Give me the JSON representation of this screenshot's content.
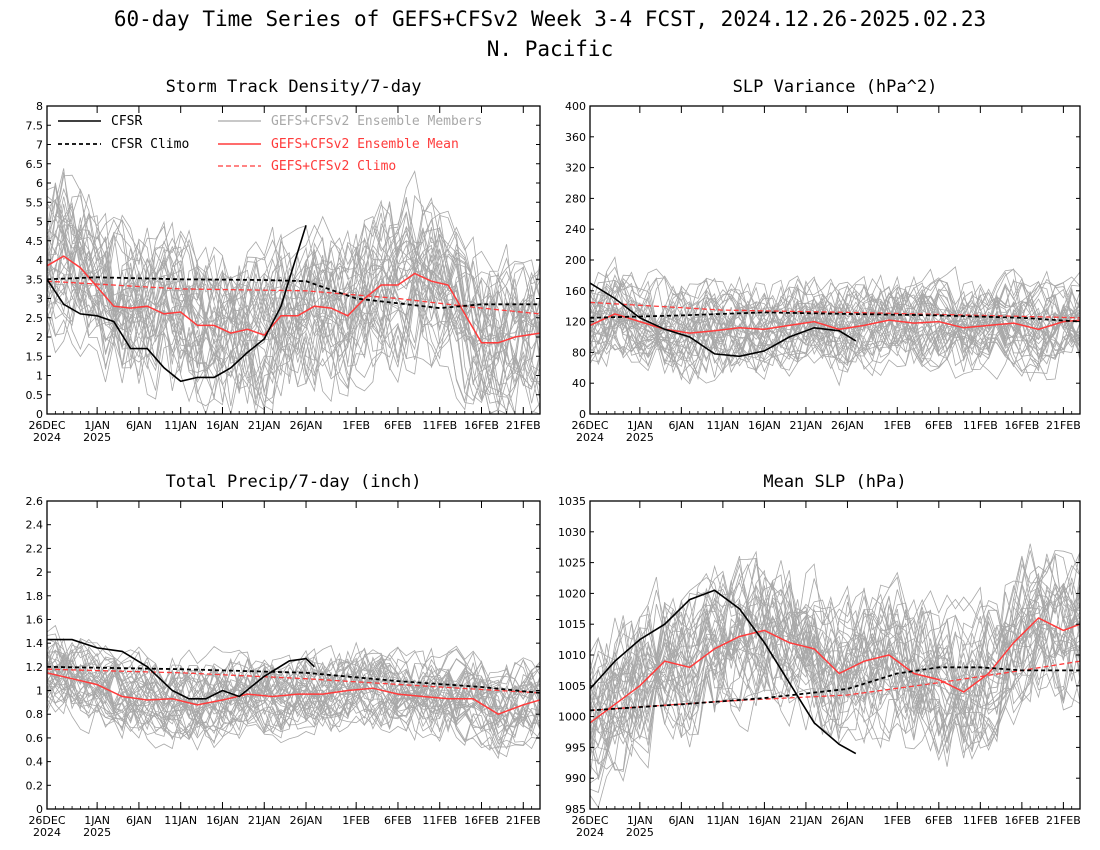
{
  "title_line1": "60-day Time Series of GEFS+CFSv2 Week 3-4 FCST, 2024.12.26-2025.02.23",
  "title_line2": "N. Pacific",
  "colors": {
    "cfsr": "#000000",
    "members": "#a8a8a8",
    "mean": "#ff3b3b",
    "climo_red": "#ff3b3b"
  },
  "legend": {
    "cfsr": "CFSR",
    "cfsr_climo": "CFSR Climo",
    "members": "GEFS+CFSv2 Ensemble Members",
    "mean": "GEFS+CFSv2 Ensemble Mean",
    "gefs_climo": "GEFS+CFSv2 Climo"
  },
  "x_axis": {
    "start": "2024-12-26",
    "end": "2025-02-23",
    "tick_labels": [
      {
        "date": "2024-12-26",
        "line1": "26DEC",
        "line2": "2024"
      },
      {
        "date": "2025-01-01",
        "line1": "1JAN",
        "line2": "2025"
      },
      {
        "date": "2025-01-06",
        "line1": "6JAN",
        "line2": ""
      },
      {
        "date": "2025-01-11",
        "line1": "11JAN",
        "line2": ""
      },
      {
        "date": "2025-01-16",
        "line1": "16JAN",
        "line2": ""
      },
      {
        "date": "2025-01-21",
        "line1": "21JAN",
        "line2": ""
      },
      {
        "date": "2025-01-26",
        "line1": "26JAN",
        "line2": ""
      },
      {
        "date": "2025-02-01",
        "line1": "1FEB",
        "line2": ""
      },
      {
        "date": "2025-02-06",
        "line1": "6FEB",
        "line2": ""
      },
      {
        "date": "2025-02-11",
        "line1": "11FEB",
        "line2": ""
      },
      {
        "date": "2025-02-16",
        "line1": "16FEB",
        "line2": ""
      },
      {
        "date": "2025-02-21",
        "line1": "21FEB",
        "line2": ""
      }
    ]
  },
  "chart_data": [
    {
      "type": "line",
      "title": "Storm Track Density/7-day",
      "ylim": [
        0,
        8
      ],
      "yticks": [
        "0",
        "0.5",
        "1",
        "1.5",
        "2",
        "2.5",
        "3",
        "3.5",
        "4",
        "4.5",
        "5",
        "5.5",
        "6",
        "6.5",
        "7",
        "7.5",
        "8"
      ],
      "show_legend": true,
      "members": {
        "count": 40,
        "spread": 1.3,
        "min": 0,
        "max": 8,
        "seed": 11
      },
      "series": [
        {
          "name": "CFSR",
          "style": "solid-black",
          "x": [
            "2024-12-26",
            "2024-12-28",
            "2024-12-30",
            "2025-01-01",
            "2025-01-03",
            "2025-01-05",
            "2025-01-07",
            "2025-01-09",
            "2025-01-11",
            "2025-01-13",
            "2025-01-15",
            "2025-01-17",
            "2025-01-19",
            "2025-01-21",
            "2025-01-23",
            "2025-01-26"
          ],
          "y": [
            3.5,
            2.85,
            2.6,
            2.55,
            2.4,
            1.7,
            1.7,
            1.2,
            0.85,
            0.95,
            0.95,
            1.2,
            1.6,
            1.95,
            2.8,
            4.9
          ]
        },
        {
          "name": "CFSR Climo",
          "style": "dashed-black",
          "x": [
            "2024-12-26",
            "2025-01-01",
            "2025-01-11",
            "2025-01-21",
            "2025-01-26",
            "2025-02-01",
            "2025-02-11",
            "2025-02-16",
            "2025-02-23"
          ],
          "y": [
            3.5,
            3.55,
            3.5,
            3.48,
            3.45,
            3.0,
            2.75,
            2.85,
            2.85
          ]
        },
        {
          "name": "GEFS+CFSv2 Ensemble Mean",
          "style": "solid-red",
          "x": [
            "2024-12-26",
            "2024-12-28",
            "2024-12-30",
            "2025-01-01",
            "2025-01-03",
            "2025-01-05",
            "2025-01-07",
            "2025-01-09",
            "2025-01-11",
            "2025-01-13",
            "2025-01-15",
            "2025-01-17",
            "2025-01-19",
            "2025-01-21",
            "2025-01-23",
            "2025-01-25",
            "2025-01-27",
            "2025-01-29",
            "2025-01-31",
            "2025-02-02",
            "2025-02-04",
            "2025-02-06",
            "2025-02-08",
            "2025-02-10",
            "2025-02-12",
            "2025-02-14",
            "2025-02-16",
            "2025-02-18",
            "2025-02-20",
            "2025-02-23"
          ],
          "y": [
            3.85,
            4.1,
            3.8,
            3.3,
            2.8,
            2.75,
            2.8,
            2.6,
            2.65,
            2.3,
            2.3,
            2.1,
            2.2,
            2.05,
            2.55,
            2.55,
            2.8,
            2.75,
            2.55,
            3.0,
            3.35,
            3.35,
            3.65,
            3.45,
            3.35,
            2.6,
            1.85,
            1.85,
            2.0,
            2.1
          ]
        },
        {
          "name": "GEFS+CFSv2 Climo",
          "style": "dashed-red",
          "x": [
            "2024-12-26",
            "2025-01-11",
            "2025-01-26",
            "2025-02-06",
            "2025-02-16",
            "2025-02-23"
          ],
          "y": [
            3.45,
            3.25,
            3.2,
            3.0,
            2.75,
            2.6
          ]
        }
      ]
    },
    {
      "type": "line",
      "title": "SLP Variance (hPa^2)",
      "ylim": [
        0,
        400
      ],
      "yticks": [
        "0",
        "40",
        "80",
        "120",
        "160",
        "200",
        "240",
        "280",
        "320",
        "360",
        "400"
      ],
      "show_legend": false,
      "members": {
        "count": 40,
        "spread": 38,
        "min": 20,
        "max": 310,
        "seed": 23
      },
      "series": [
        {
          "name": "CFSR",
          "style": "solid-black",
          "x": [
            "2024-12-26",
            "2024-12-29",
            "2025-01-01",
            "2025-01-04",
            "2025-01-07",
            "2025-01-10",
            "2025-01-13",
            "2025-01-16",
            "2025-01-19",
            "2025-01-22",
            "2025-01-25",
            "2025-01-27"
          ],
          "y": [
            170,
            150,
            125,
            110,
            100,
            78,
            75,
            82,
            100,
            112,
            108,
            95
          ]
        },
        {
          "name": "CFSR Climo",
          "style": "dashed-black",
          "x": [
            "2024-12-26",
            "2025-01-06",
            "2025-01-16",
            "2025-01-26",
            "2025-02-06",
            "2025-02-16",
            "2025-02-23"
          ],
          "y": [
            125,
            128,
            132,
            130,
            128,
            125,
            120
          ]
        },
        {
          "name": "GEFS+CFSv2 Ensemble Mean",
          "style": "solid-red",
          "x": [
            "2024-12-26",
            "2024-12-29",
            "2025-01-01",
            "2025-01-04",
            "2025-01-07",
            "2025-01-10",
            "2025-01-13",
            "2025-01-16",
            "2025-01-19",
            "2025-01-22",
            "2025-01-25",
            "2025-01-28",
            "2025-01-31",
            "2025-02-03",
            "2025-02-06",
            "2025-02-09",
            "2025-02-12",
            "2025-02-15",
            "2025-02-18",
            "2025-02-21",
            "2025-02-23"
          ],
          "y": [
            115,
            130,
            120,
            110,
            105,
            108,
            112,
            110,
            115,
            120,
            110,
            115,
            122,
            118,
            120,
            112,
            115,
            118,
            110,
            120,
            122
          ]
        },
        {
          "name": "GEFS+CFSv2 Climo",
          "style": "dashed-red",
          "x": [
            "2024-12-26",
            "2025-01-11",
            "2025-01-26",
            "2025-02-11",
            "2025-02-23"
          ],
          "y": [
            145,
            135,
            132,
            128,
            125
          ]
        }
      ]
    },
    {
      "type": "line",
      "title": "Total Precip/7-day (inch)",
      "ylim": [
        0,
        2.6
      ],
      "yticks": [
        "0",
        "0.2",
        "0.4",
        "0.6",
        "0.8",
        "1",
        "1.2",
        "1.4",
        "1.6",
        "1.8",
        "2",
        "2.2",
        "2.4",
        "2.6"
      ],
      "show_legend": false,
      "members": {
        "count": 40,
        "spread": 0.22,
        "min": 0.25,
        "max": 1.75,
        "seed": 37
      },
      "series": [
        {
          "name": "CFSR",
          "style": "solid-black",
          "x": [
            "2024-12-26",
            "2024-12-29",
            "2025-01-01",
            "2025-01-04",
            "2025-01-07",
            "2025-01-10",
            "2025-01-12",
            "2025-01-14",
            "2025-01-16",
            "2025-01-18",
            "2025-01-21",
            "2025-01-24",
            "2025-01-26",
            "2025-01-27"
          ],
          "y": [
            1.43,
            1.43,
            1.36,
            1.33,
            1.2,
            1.0,
            0.93,
            0.93,
            1.0,
            0.95,
            1.12,
            1.25,
            1.27,
            1.2
          ]
        },
        {
          "name": "CFSR Climo",
          "style": "dashed-black",
          "x": [
            "2024-12-26",
            "2025-01-11",
            "2025-01-26",
            "2025-02-06",
            "2025-02-16",
            "2025-02-23"
          ],
          "y": [
            1.2,
            1.18,
            1.15,
            1.08,
            1.03,
            0.98
          ]
        },
        {
          "name": "GEFS+CFSv2 Ensemble Mean",
          "style": "solid-red",
          "x": [
            "2024-12-26",
            "2024-12-29",
            "2025-01-01",
            "2025-01-04",
            "2025-01-07",
            "2025-01-10",
            "2025-01-13",
            "2025-01-16",
            "2025-01-19",
            "2025-01-22",
            "2025-01-25",
            "2025-01-28",
            "2025-01-31",
            "2025-02-03",
            "2025-02-06",
            "2025-02-09",
            "2025-02-12",
            "2025-02-15",
            "2025-02-18",
            "2025-02-21",
            "2025-02-23"
          ],
          "y": [
            1.15,
            1.1,
            1.05,
            0.95,
            0.92,
            0.93,
            0.88,
            0.92,
            0.97,
            0.95,
            0.97,
            0.97,
            1.0,
            1.02,
            0.97,
            0.95,
            0.93,
            0.93,
            0.8,
            0.88,
            0.92
          ]
        },
        {
          "name": "GEFS+CFSv2 Climo",
          "style": "dashed-red",
          "x": [
            "2024-12-26",
            "2025-01-11",
            "2025-01-26",
            "2025-02-11",
            "2025-02-23"
          ],
          "y": [
            1.18,
            1.15,
            1.1,
            1.03,
            0.98
          ]
        }
      ]
    },
    {
      "type": "line",
      "title": "Mean SLP (hPa)",
      "ylim": [
        985,
        1035
      ],
      "yticks": [
        "985",
        "990",
        "995",
        "1000",
        "1005",
        "1010",
        "1015",
        "1020",
        "1025",
        "1030",
        "1035"
      ],
      "show_legend": false,
      "members": {
        "count": 40,
        "spread": 7.5,
        "min": 985,
        "max": 1032,
        "seed": 53
      },
      "series": [
        {
          "name": "CFSR",
          "style": "solid-black",
          "x": [
            "2024-12-26",
            "2024-12-29",
            "2025-01-01",
            "2025-01-04",
            "2025-01-07",
            "2025-01-10",
            "2025-01-13",
            "2025-01-16",
            "2025-01-19",
            "2025-01-22",
            "2025-01-25",
            "2025-01-27"
          ],
          "y": [
            1004.5,
            1009,
            1012.5,
            1015,
            1019,
            1020.5,
            1017.5,
            1012,
            1005.5,
            999,
            995.5,
            994
          ]
        },
        {
          "name": "CFSR Climo",
          "style": "dashed-black",
          "x": [
            "2024-12-26",
            "2025-01-06",
            "2025-01-16",
            "2025-01-26",
            "2025-02-01",
            "2025-02-06",
            "2025-02-11",
            "2025-02-16",
            "2025-02-23"
          ],
          "y": [
            1001,
            1002,
            1003,
            1004.5,
            1007,
            1008,
            1008,
            1007.5,
            1007.5
          ]
        },
        {
          "name": "GEFS+CFSv2 Ensemble Mean",
          "style": "solid-red",
          "x": [
            "2024-12-26",
            "2024-12-29",
            "2025-01-01",
            "2025-01-04",
            "2025-01-07",
            "2025-01-10",
            "2025-01-13",
            "2025-01-16",
            "2025-01-19",
            "2025-01-22",
            "2025-01-25",
            "2025-01-28",
            "2025-01-31",
            "2025-02-03",
            "2025-02-06",
            "2025-02-09",
            "2025-02-12",
            "2025-02-15",
            "2025-02-18",
            "2025-02-21",
            "2025-02-23"
          ],
          "y": [
            999,
            1002,
            1005,
            1009,
            1008,
            1011,
            1013,
            1014,
            1012,
            1011,
            1007,
            1009,
            1010,
            1007,
            1006,
            1004,
            1007,
            1012,
            1016,
            1014,
            1015
          ]
        },
        {
          "name": "GEFS+CFSv2 Climo",
          "style": "dashed-red",
          "x": [
            "2024-12-26",
            "2025-01-11",
            "2025-01-26",
            "2025-02-06",
            "2025-02-16",
            "2025-02-23"
          ],
          "y": [
            1001,
            1002.5,
            1003.5,
            1005.5,
            1007.5,
            1009
          ]
        }
      ]
    }
  ]
}
